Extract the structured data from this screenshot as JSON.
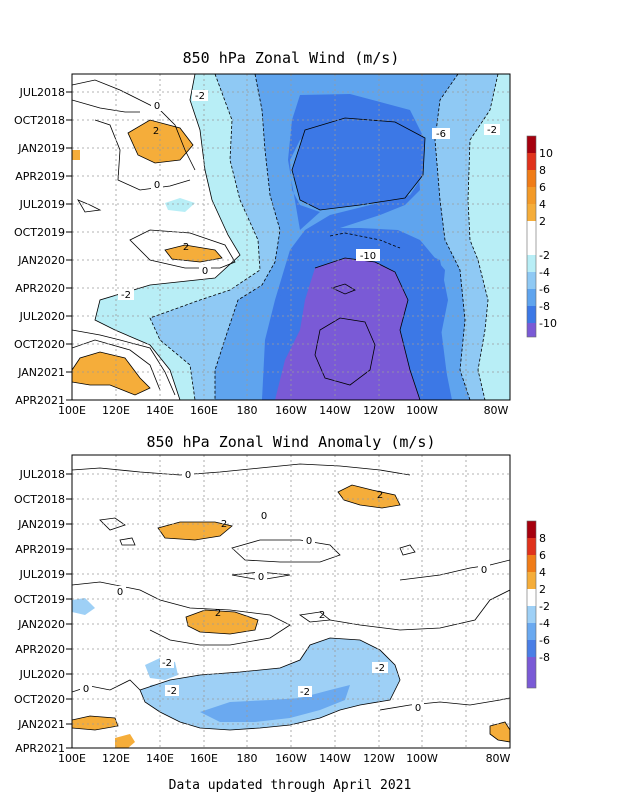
{
  "footer": "Data updated through April 2021",
  "colors": {
    "pos10": "#b5140c",
    "pos8": "#e0321c",
    "pos6": "#f07c18",
    "pos4": "#f5ad3a",
    "white": "#ffffff",
    "neg2": "#b8eef6",
    "neg4": "#8fc9f4",
    "neg6": "#5fa4ee",
    "neg8": "#3c78e6",
    "neg10": "#7a5ad6",
    "red_dark": "#a6000e",
    "orange_mid": "#f39a28",
    "anom_neg2": "#9ed0f6",
    "anom_neg4": "#6aa9f0",
    "anom_neg6": "#4a7ee6",
    "anom_neg8": "#7a5ad6"
  },
  "chart_data": [
    {
      "type": "heatmap",
      "title": "850 hPa Zonal Wind (m/s)",
      "xlabel": "",
      "ylabel": "",
      "x_ticks": [
        "100E",
        "120E",
        "140E",
        "160E",
        "180",
        "160W",
        "140W",
        "120W",
        "100W",
        "80W"
      ],
      "y_ticks": [
        "JUL2018",
        "OCT2018",
        "JAN2019",
        "APR2019",
        "JUL2019",
        "OCT2019",
        "JAN2020",
        "APR2020",
        "JUL2020",
        "OCT2020",
        "JAN2021",
        "APR2021"
      ],
      "grid": true,
      "colorbar_levels": [
        "10",
        "8",
        "6",
        "4",
        "2",
        "-2",
        "-4",
        "-6",
        "-8",
        "-10"
      ],
      "contour_labels": [
        "-2",
        "0",
        "2",
        "-6",
        "-2",
        "0",
        "2",
        "0",
        "-10",
        "-2"
      ]
    },
    {
      "type": "heatmap",
      "title": "850 hPa Zonal Wind Anomaly (m/s)",
      "xlabel": "",
      "ylabel": "",
      "x_ticks": [
        "100E",
        "120E",
        "140E",
        "160E",
        "180",
        "160W",
        "140W",
        "120W",
        "100W",
        "80W"
      ],
      "y_ticks": [
        "JUL2018",
        "OCT2018",
        "JAN2019",
        "APR2019",
        "JUL2019",
        "OCT2019",
        "JAN2020",
        "APR2020",
        "JUL2020",
        "OCT2020",
        "JAN2021",
        "APR2021"
      ],
      "grid": true,
      "colorbar_levels": [
        "8",
        "6",
        "4",
        "2",
        "-2",
        "-4",
        "-6",
        "-8"
      ],
      "contour_labels": [
        "0",
        "2",
        "2",
        "0",
        "0",
        "0",
        "0",
        "2",
        "2",
        "0",
        "-2",
        "-2",
        "-2",
        "-2",
        "0",
        "0",
        "0"
      ]
    }
  ]
}
